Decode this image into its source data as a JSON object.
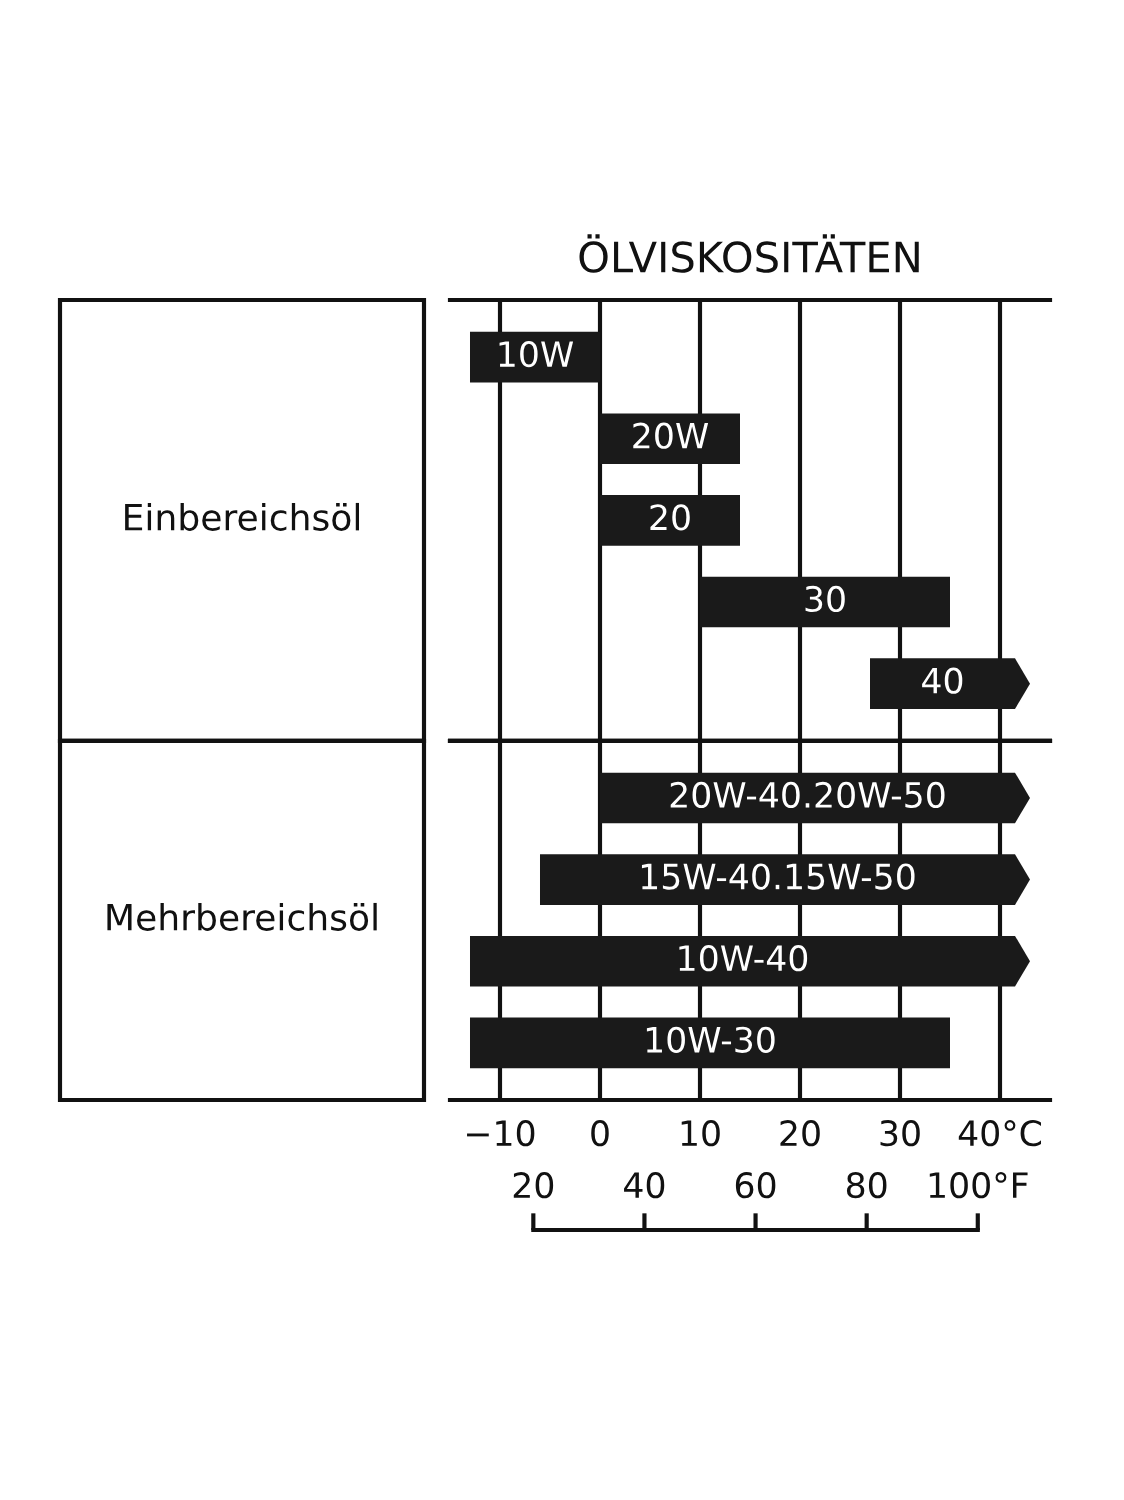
{
  "chart_data": [
    {
      "type": "bar",
      "orientation": "horizontal",
      "title": "ÖLVISKOSITÄTEN",
      "ylabel": "Einbereichsöl",
      "categories": [
        "10W",
        "20W",
        "20",
        "30",
        "40"
      ],
      "base": [
        -13,
        0,
        0,
        10,
        27
      ],
      "values": [
        13,
        14,
        14,
        25,
        16
      ],
      "color": "#1a1a1a",
      "xlim": [
        -15,
        45
      ],
      "grid": "x",
      "tick_labels": "y"
    },
    {
      "type": "bar",
      "orientation": "horizontal",
      "ylabel": "Mehrbereichsöl",
      "categories": [
        "20W-40.20W-50",
        "15W-40.15W-50",
        "10W-40",
        "10W-30"
      ],
      "base": [
        0,
        -6,
        -13,
        -13
      ],
      "values": [
        43,
        49,
        56,
        48
      ],
      "color": "#1a1a1a",
      "xlim": [
        -15,
        45
      ],
      "xticks": [
        {
          "value": -10,
          "label": "−10"
        },
        0,
        10,
        20,
        30,
        {
          "value": 40,
          "label": "40°C"
        }
      ],
      "x2lim": [
        5,
        113
      ],
      "x2ticks": [
        20,
        40,
        60,
        80,
        {
          "value": 100,
          "label": "100°F"
        }
      ],
      "grid": "x"
    }
  ]
}
